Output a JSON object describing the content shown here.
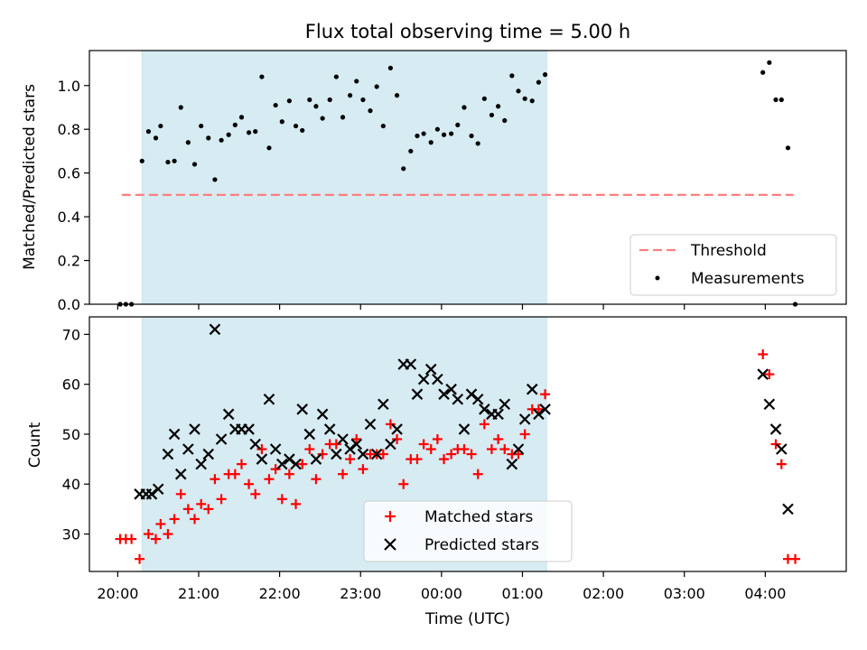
{
  "chart_data": {
    "type": "scatter",
    "title": "Flux total observing time = 5.00 h",
    "xlabel": "Time (UTC)",
    "x_tick_labels": [
      "20:00",
      "21:00",
      "22:00",
      "23:00",
      "00:00",
      "01:00",
      "02:00",
      "03:00",
      "04:00"
    ],
    "x_ticks_hours": [
      20,
      21,
      22,
      23,
      24,
      25,
      26,
      27,
      28
    ],
    "xlim_hours": [
      19.65,
      29.0
    ],
    "shaded_span_hours": [
      20.3,
      25.3
    ],
    "shaded_color": "#add8e6",
    "panels": [
      {
        "name": "ratio",
        "ylabel": "Matched/Predicted stars",
        "ylim": [
          0,
          1.16
        ],
        "y_ticks": [
          0.0,
          0.2,
          0.4,
          0.6,
          0.8,
          1.0
        ],
        "y_tick_labels": [
          "0.0",
          "0.2",
          "0.4",
          "0.6",
          "0.8",
          "1.0"
        ],
        "threshold": {
          "label": "Threshold",
          "value": 0.5,
          "x_range_hours": [
            20.05,
            28.35
          ],
          "color": "#ff7f7f"
        },
        "legend_position": "lower right",
        "series": [
          {
            "name": "Measurements",
            "marker": "dot",
            "color": "#000000",
            "x": [
              20.03,
              20.1,
              20.17,
              20.3,
              20.38,
              20.47,
              20.53,
              20.62,
              20.7,
              20.78,
              20.87,
              20.95,
              21.03,
              21.12,
              21.2,
              21.28,
              21.37,
              21.45,
              21.53,
              21.62,
              21.7,
              21.78,
              21.87,
              21.95,
              22.03,
              22.12,
              22.2,
              22.28,
              22.37,
              22.45,
              22.53,
              22.62,
              22.7,
              22.78,
              22.87,
              22.95,
              23.03,
              23.12,
              23.2,
              23.28,
              23.37,
              23.45,
              23.53,
              23.62,
              23.7,
              23.78,
              23.87,
              23.95,
              24.03,
              24.12,
              24.2,
              24.28,
              24.37,
              24.45,
              24.53,
              24.62,
              24.7,
              24.78,
              24.87,
              24.95,
              25.03,
              25.12,
              25.2,
              25.28,
              27.97,
              28.05,
              28.13,
              28.2,
              28.28,
              28.37
            ],
            "y": [
              0.0,
              0.0,
              0.0,
              0.655,
              0.79,
              0.76,
              0.815,
              0.65,
              0.655,
              0.9,
              0.74,
              0.64,
              0.815,
              0.76,
              0.57,
              0.75,
              0.775,
              0.82,
              0.855,
              0.785,
              0.79,
              1.04,
              0.715,
              0.91,
              0.835,
              0.93,
              0.815,
              0.795,
              0.935,
              0.905,
              0.85,
              0.935,
              1.04,
              0.855,
              0.955,
              1.02,
              0.935,
              0.885,
              0.995,
              0.815,
              1.08,
              0.955,
              0.62,
              0.7,
              0.77,
              0.78,
              0.74,
              0.8,
              0.775,
              0.78,
              0.82,
              0.9,
              0.77,
              0.735,
              0.94,
              0.865,
              0.905,
              0.84,
              1.045,
              0.975,
              0.94,
              0.93,
              1.015,
              1.05,
              1.06,
              1.105,
              0.935,
              0.935,
              0.715,
              0.0
            ]
          }
        ]
      },
      {
        "name": "counts",
        "ylabel": "Count",
        "ylim": [
          22.5,
          73.5
        ],
        "y_ticks": [
          30,
          40,
          50,
          60,
          70
        ],
        "y_tick_labels": [
          "30",
          "40",
          "50",
          "60",
          "70"
        ],
        "legend_position": "lower center",
        "series": [
          {
            "name": "Matched stars",
            "marker": "plus",
            "color": "#ff0000",
            "x": [
              20.03,
              20.1,
              20.17,
              20.27,
              20.38,
              20.47,
              20.53,
              20.62,
              20.7,
              20.78,
              20.87,
              20.95,
              21.03,
              21.12,
              21.2,
              21.28,
              21.37,
              21.45,
              21.53,
              21.62,
              21.7,
              21.78,
              21.87,
              21.95,
              22.03,
              22.12,
              22.2,
              22.28,
              22.37,
              22.45,
              22.53,
              22.62,
              22.7,
              22.78,
              22.87,
              22.95,
              23.03,
              23.12,
              23.2,
              23.28,
              23.37,
              23.45,
              23.53,
              23.62,
              23.7,
              23.78,
              23.87,
              23.95,
              24.03,
              24.12,
              24.2,
              24.28,
              24.37,
              24.45,
              24.53,
              24.62,
              24.7,
              24.78,
              24.87,
              24.95,
              25.03,
              25.12,
              25.2,
              25.28,
              27.97,
              28.05,
              28.13,
              28.2,
              28.28,
              28.37
            ],
            "y": [
              29,
              29,
              29,
              25,
              30,
              29,
              32,
              30,
              33,
              38,
              35,
              33,
              36,
              35,
              41,
              37,
              42,
              42,
              44,
              40,
              38,
              47,
              41,
              43,
              37,
              42,
              36,
              44,
              47,
              41,
              46,
              48,
              48,
              42,
              45,
              49,
              43,
              46,
              46,
              46,
              52,
              49,
              40,
              45,
              45,
              48,
              47,
              49,
              45,
              46,
              47,
              47,
              46,
              42,
              52,
              47,
              49,
              47,
              46,
              46,
              50,
              55,
              55,
              58,
              66,
              62,
              48,
              44,
              25,
              25
            ]
          },
          {
            "name": "Predicted stars",
            "marker": "x",
            "color": "#000000",
            "x": [
              20.27,
              20.35,
              20.42,
              20.5,
              20.62,
              20.7,
              20.78,
              20.87,
              20.95,
              21.03,
              21.12,
              21.2,
              21.28,
              21.37,
              21.45,
              21.53,
              21.62,
              21.7,
              21.78,
              21.87,
              21.95,
              22.03,
              22.12,
              22.2,
              22.28,
              22.37,
              22.45,
              22.53,
              22.62,
              22.7,
              22.78,
              22.87,
              22.95,
              23.03,
              23.12,
              23.2,
              23.28,
              23.37,
              23.45,
              23.53,
              23.62,
              23.7,
              23.78,
              23.87,
              23.95,
              24.03,
              24.12,
              24.2,
              24.28,
              24.37,
              24.45,
              24.53,
              24.62,
              24.7,
              24.78,
              24.87,
              24.95,
              25.03,
              25.12,
              25.2,
              25.28,
              27.97,
              28.05,
              28.13,
              28.2,
              28.28
            ],
            "y": [
              38,
              38,
              38,
              39,
              46,
              50,
              42,
              47,
              51,
              44,
              46,
              71,
              49,
              54,
              51,
              51,
              51,
              48,
              45,
              57,
              47,
              44,
              45,
              44,
              55,
              50,
              45,
              54,
              51,
              46,
              49,
              47,
              48,
              46,
              52,
              46,
              56,
              48,
              51,
              64,
              64,
              58,
              61,
              63,
              61,
              58,
              59,
              57,
              51,
              58,
              57,
              55,
              54,
              54,
              56,
              44,
              47,
              53,
              59,
              54,
              55,
              62,
              56,
              51,
              47,
              35
            ]
          }
        ]
      }
    ]
  }
}
